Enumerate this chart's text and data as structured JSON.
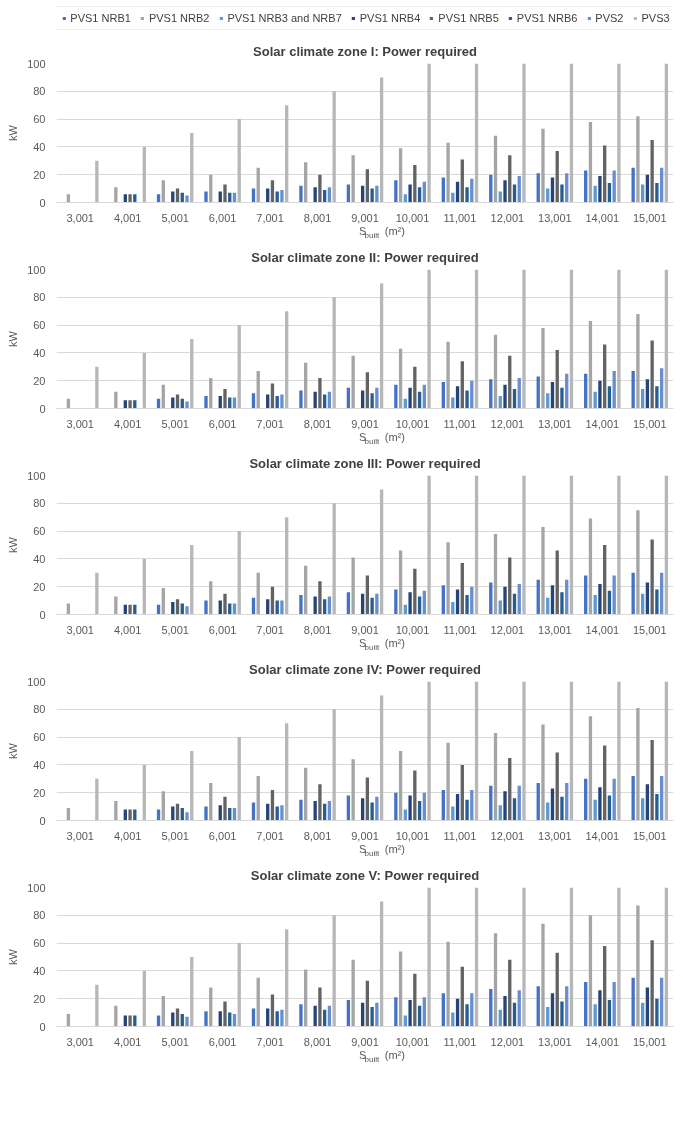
{
  "chart_data": [
    {
      "type": "bar",
      "title": "Solar climate zone I: Power required",
      "xlabel": "S$_{built}$ (m²)",
      "ylabel": "kW",
      "categories": [
        "3,001",
        "4,001",
        "5,001",
        "6,001",
        "7,001",
        "8,001",
        "9,001",
        "10,001",
        "11,001",
        "12,001",
        "13,001",
        "14,001",
        "15,001"
      ],
      "ylim": [
        0,
        100
      ],
      "yticks": [
        0,
        20,
        40,
        60,
        80,
        100
      ],
      "grid": "y",
      "legend": "top",
      "series": [
        {
          "name": "PVS1 NRB1",
          "color": "#4472c4",
          "values": [
            null,
            null,
            6,
            8,
            10,
            12,
            13,
            16,
            18,
            20,
            21,
            23,
            25
          ]
        },
        {
          "name": "PVS1 NRB2",
          "color": "#a5a5a5",
          "values": [
            6,
            11,
            16,
            20,
            25,
            29,
            34,
            39,
            43,
            48,
            53,
            58,
            62
          ]
        },
        {
          "name": "PVS1 NRB3 and NRB7",
          "color": "#5b9bd5",
          "values": [
            null,
            null,
            null,
            null,
            null,
            null,
            null,
            6,
            7,
            8,
            10,
            12,
            13
          ]
        },
        {
          "name": "PVS1 NRB4",
          "color": "#264478",
          "values": [
            null,
            6,
            8,
            8,
            10,
            11,
            12,
            13,
            15,
            16,
            18,
            19,
            20
          ]
        },
        {
          "name": "PVS1 NRB5",
          "color": "#636363",
          "values": [
            null,
            6,
            10,
            13,
            16,
            20,
            24,
            27,
            31,
            34,
            37,
            41,
            45
          ]
        },
        {
          "name": "PVS1 NRB6",
          "color": "#255e91",
          "values": [
            null,
            6,
            7,
            7,
            8,
            9,
            10,
            11,
            11,
            13,
            13,
            14,
            14
          ]
        },
        {
          "name": "PVS2",
          "color": "#698ed0",
          "values": [
            null,
            null,
            5,
            7,
            9,
            11,
            12,
            15,
            17,
            19,
            21,
            23,
            25
          ]
        },
        {
          "name": "PVS3",
          "color": "#b7b7b7",
          "values": [
            30,
            40,
            50,
            60,
            70,
            80,
            90,
            100,
            100,
            100,
            100,
            100,
            100
          ]
        }
      ]
    },
    {
      "type": "bar",
      "title": "Solar climate zone II: Power required",
      "xlabel": "S$_{built}$ (m²)",
      "ylabel": "kW",
      "categories": [
        "3,001",
        "4,001",
        "5,001",
        "6,001",
        "7,001",
        "8,001",
        "9,001",
        "10,001",
        "11,001",
        "12,001",
        "13,001",
        "14,001",
        "15,001"
      ],
      "ylim": [
        0,
        100
      ],
      "yticks": [
        0,
        20,
        40,
        60,
        80,
        100
      ],
      "grid": "y",
      "series": [
        {
          "color": "#4472c4",
          "values": [
            null,
            null,
            7,
            9,
            11,
            13,
            15,
            17,
            19,
            21,
            23,
            25,
            27
          ]
        },
        {
          "color": "#a5a5a5",
          "values": [
            7,
            12,
            17,
            22,
            27,
            33,
            38,
            43,
            48,
            53,
            58,
            63,
            68
          ]
        },
        {
          "color": "#5b9bd5",
          "values": [
            null,
            null,
            null,
            null,
            null,
            null,
            null,
            7,
            8,
            9,
            11,
            12,
            14
          ]
        },
        {
          "color": "#264478",
          "values": [
            null,
            6,
            8,
            9,
            10,
            12,
            13,
            15,
            16,
            17,
            19,
            20,
            21
          ]
        },
        {
          "color": "#636363",
          "values": [
            null,
            6,
            10,
            14,
            18,
            22,
            26,
            30,
            34,
            38,
            42,
            46,
            49
          ]
        },
        {
          "color": "#255e91",
          "values": [
            null,
            6,
            7,
            8,
            9,
            10,
            11,
            12,
            13,
            14,
            15,
            16,
            16
          ]
        },
        {
          "color": "#698ed0",
          "values": [
            null,
            null,
            5,
            8,
            10,
            12,
            15,
            17,
            20,
            22,
            25,
            27,
            29
          ]
        },
        {
          "color": "#b7b7b7",
          "values": [
            30,
            40,
            50,
            60,
            70,
            80,
            90,
            100,
            100,
            100,
            100,
            100,
            100
          ]
        }
      ]
    },
    {
      "type": "bar",
      "title": "Solar climate zone III: Power required",
      "xlabel": "S$_{built}$ (m²)",
      "ylabel": "kW",
      "categories": [
        "3,001",
        "4,001",
        "5,001",
        "6,001",
        "7,001",
        "8,001",
        "9,001",
        "10,001",
        "11,001",
        "12,001",
        "13,001",
        "14,001",
        "15,001"
      ],
      "ylim": [
        0,
        100
      ],
      "yticks": [
        0,
        20,
        40,
        60,
        80,
        100
      ],
      "grid": "y",
      "series": [
        {
          "color": "#4472c4",
          "values": [
            null,
            null,
            7,
            10,
            12,
            14,
            16,
            18,
            21,
            23,
            25,
            28,
            30
          ]
        },
        {
          "color": "#a5a5a5",
          "values": [
            8,
            13,
            19,
            24,
            30,
            35,
            41,
            46,
            52,
            58,
            63,
            69,
            75
          ]
        },
        {
          "color": "#5b9bd5",
          "values": [
            null,
            null,
            null,
            null,
            null,
            null,
            null,
            7,
            9,
            10,
            12,
            14,
            15
          ]
        },
        {
          "color": "#264478",
          "values": [
            null,
            7,
            9,
            10,
            11,
            13,
            15,
            16,
            18,
            20,
            21,
            22,
            23
          ]
        },
        {
          "color": "#636363",
          "values": [
            null,
            7,
            11,
            15,
            20,
            24,
            28,
            33,
            37,
            41,
            46,
            50,
            54
          ]
        },
        {
          "color": "#255e91",
          "values": [
            null,
            7,
            8,
            8,
            10,
            11,
            12,
            13,
            14,
            15,
            16,
            17,
            18
          ]
        },
        {
          "color": "#698ed0",
          "values": [
            null,
            null,
            6,
            8,
            10,
            13,
            15,
            17,
            20,
            22,
            25,
            28,
            30
          ]
        },
        {
          "color": "#b7b7b7",
          "values": [
            30,
            40,
            50,
            60,
            70,
            80,
            90,
            100,
            100,
            100,
            100,
            100,
            100
          ]
        }
      ]
    },
    {
      "type": "bar",
      "title": "Solar climate zone IV: Power required",
      "xlabel": "S$_{built}$ (m²)",
      "ylabel": "kW",
      "categories": [
        "3,001",
        "4,001",
        "5,001",
        "6,001",
        "7,001",
        "8,001",
        "9,001",
        "10,001",
        "11,001",
        "12,001",
        "13,001",
        "14,001",
        "15,001"
      ],
      "ylim": [
        0,
        100
      ],
      "yticks": [
        0,
        20,
        40,
        60,
        80,
        100
      ],
      "grid": "y",
      "series": [
        {
          "color": "#4472c4",
          "values": [
            null,
            null,
            8,
            10,
            13,
            15,
            18,
            20,
            22,
            25,
            27,
            30,
            32
          ]
        },
        {
          "color": "#a5a5a5",
          "values": [
            9,
            14,
            21,
            27,
            32,
            38,
            44,
            50,
            56,
            63,
            69,
            75,
            81
          ]
        },
        {
          "color": "#5b9bd5",
          "values": [
            null,
            null,
            null,
            null,
            null,
            null,
            null,
            8,
            10,
            11,
            13,
            15,
            16
          ]
        },
        {
          "color": "#264478",
          "values": [
            null,
            8,
            10,
            11,
            12,
            14,
            16,
            18,
            19,
            21,
            23,
            24,
            26
          ]
        },
        {
          "color": "#636363",
          "values": [
            null,
            8,
            12,
            17,
            22,
            26,
            31,
            36,
            40,
            45,
            49,
            54,
            58
          ]
        },
        {
          "color": "#255e91",
          "values": [
            null,
            8,
            9,
            9,
            10,
            12,
            13,
            14,
            15,
            16,
            17,
            18,
            19
          ]
        },
        {
          "color": "#698ed0",
          "values": [
            null,
            null,
            6,
            9,
            11,
            14,
            17,
            20,
            22,
            25,
            27,
            30,
            32
          ]
        },
        {
          "color": "#b7b7b7",
          "values": [
            30,
            40,
            50,
            60,
            70,
            80,
            90,
            100,
            100,
            100,
            100,
            100,
            100
          ]
        }
      ]
    },
    {
      "type": "bar",
      "title": "Solar climate zone V: Power required",
      "xlabel": "S$_{built}$ (m²)",
      "ylabel": "kW",
      "categories": [
        "3,001",
        "4,001",
        "5,001",
        "6,001",
        "7,001",
        "8,001",
        "9,001",
        "10,001",
        "11,001",
        "12,001",
        "13,001",
        "14,001",
        "15,001"
      ],
      "ylim": [
        0,
        100
      ],
      "yticks": [
        0,
        20,
        40,
        60,
        80,
        100
      ],
      "grid": "y",
      "series": [
        {
          "color": "#4472c4",
          "values": [
            null,
            null,
            8,
            11,
            13,
            16,
            19,
            21,
            24,
            27,
            29,
            32,
            35
          ]
        },
        {
          "color": "#a5a5a5",
          "values": [
            9,
            15,
            22,
            28,
            35,
            41,
            48,
            54,
            61,
            67,
            74,
            80,
            87
          ]
        },
        {
          "color": "#5b9bd5",
          "values": [
            null,
            null,
            null,
            null,
            null,
            null,
            null,
            8,
            10,
            12,
            14,
            16,
            17
          ]
        },
        {
          "color": "#264478",
          "values": [
            null,
            8,
            10,
            11,
            13,
            15,
            17,
            19,
            20,
            22,
            24,
            26,
            28
          ]
        },
        {
          "color": "#636363",
          "values": [
            null,
            8,
            13,
            18,
            23,
            28,
            33,
            38,
            43,
            48,
            53,
            58,
            62
          ]
        },
        {
          "color": "#255e91",
          "values": [
            null,
            8,
            9,
            10,
            11,
            12,
            14,
            15,
            16,
            17,
            18,
            19,
            20
          ]
        },
        {
          "color": "#698ed0",
          "values": [
            null,
            null,
            7,
            9,
            12,
            15,
            17,
            21,
            24,
            26,
            29,
            32,
            35
          ]
        },
        {
          "color": "#b7b7b7",
          "values": [
            30,
            40,
            50,
            60,
            70,
            80,
            90,
            100,
            100,
            100,
            100,
            100,
            100
          ]
        }
      ]
    }
  ]
}
